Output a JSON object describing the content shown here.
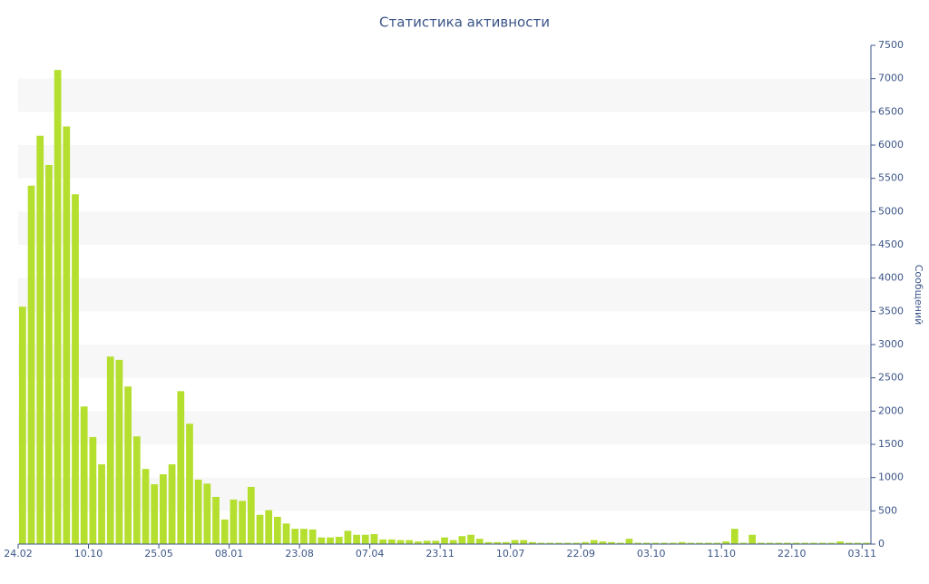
{
  "chart_data": {
    "type": "bar",
    "title": "Статистика активности",
    "y_label": "Сообщений",
    "color": "#b5df2f",
    "categories": [
      "24.02",
      null,
      null,
      null,
      null,
      null,
      null,
      null,
      "10.10",
      null,
      null,
      null,
      null,
      null,
      null,
      null,
      "25.05",
      null,
      null,
      null,
      null,
      null,
      null,
      null,
      "08.01",
      null,
      null,
      null,
      null,
      null,
      null,
      null,
      "23.08",
      null,
      null,
      null,
      null,
      null,
      null,
      null,
      "07.04",
      null,
      null,
      null,
      null,
      null,
      null,
      null,
      "23.11",
      null,
      null,
      null,
      null,
      null,
      null,
      null,
      "10.07",
      null,
      null,
      null,
      null,
      null,
      null,
      null,
      "22.09",
      null,
      null,
      null,
      null,
      null,
      null,
      null,
      "03.10",
      null,
      null,
      null,
      null,
      null,
      null,
      null,
      "11.10",
      null,
      null,
      null,
      null,
      null,
      null,
      null,
      "22.10",
      null,
      null,
      null,
      null,
      null,
      null,
      null,
      "03.11"
    ],
    "values": [
      3570,
      5390,
      6140,
      5700,
      7130,
      6280,
      5260,
      2070,
      1610,
      1200,
      2820,
      2770,
      2370,
      1620,
      1130,
      900,
      1050,
      1200,
      2300,
      1810,
      970,
      910,
      710,
      370,
      670,
      650,
      860,
      440,
      510,
      410,
      310,
      230,
      230,
      220,
      100,
      100,
      110,
      200,
      140,
      140,
      150,
      70,
      70,
      60,
      60,
      40,
      50,
      50,
      100,
      60,
      120,
      140,
      80,
      30,
      30,
      30,
      60,
      60,
      30,
      20,
      20,
      20,
      20,
      20,
      30,
      60,
      40,
      30,
      20,
      80,
      20,
      20,
      20,
      20,
      20,
      30,
      20,
      20,
      20,
      20,
      40,
      230,
      20,
      140,
      20,
      20,
      20,
      20,
      20,
      20,
      20,
      20,
      20,
      40,
      20,
      20,
      20
    ],
    "ylim": [
      0,
      7500
    ],
    "yticks": [
      0,
      500,
      1000,
      1500,
      2000,
      2500,
      3000,
      3500,
      4000,
      4500,
      5000,
      5500,
      6000,
      6500,
      7000,
      7500
    ],
    "grid": true
  }
}
